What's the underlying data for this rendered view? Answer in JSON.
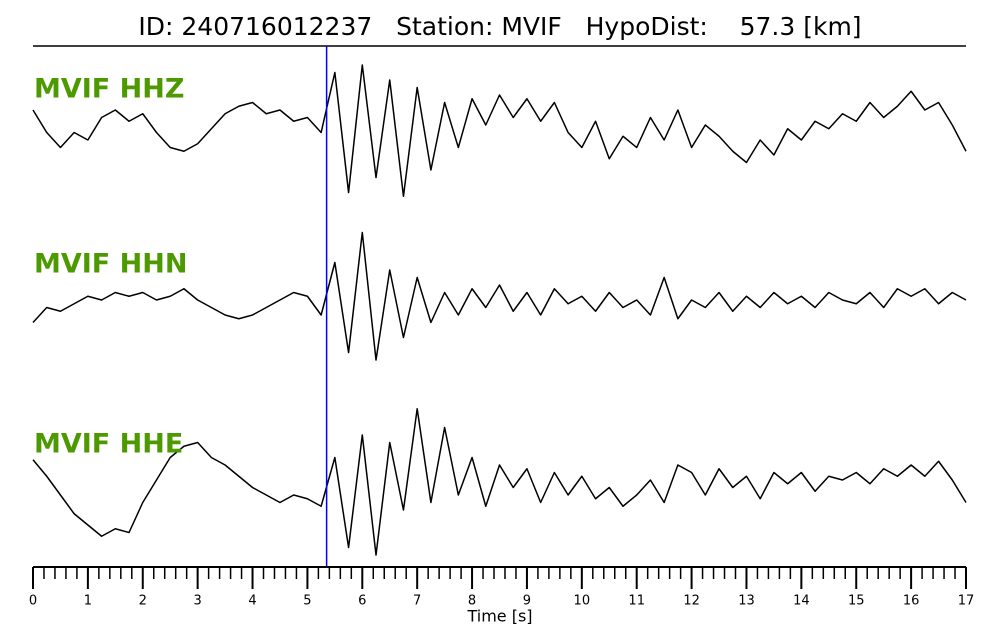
{
  "chart_data": {
    "type": "line",
    "title": "ID: 240716012237   Station: MVIF   HypoDist:    57.3 [km]",
    "xlabel": "Time [s]",
    "xlim": [
      0,
      17
    ],
    "xticks": [
      0,
      1,
      2,
      3,
      4,
      5,
      6,
      7,
      8,
      9,
      10,
      11,
      12,
      13,
      14,
      15,
      16,
      17
    ],
    "minor_tick_step": 0.2,
    "ylim": [
      -1,
      1
    ],
    "label_color": "#4d9a00",
    "vlines": [
      {
        "x": 5.35,
        "color": "#0000ee"
      }
    ],
    "x": [
      0,
      0.25,
      0.5,
      0.75,
      1,
      1.25,
      1.5,
      1.75,
      2,
      2.25,
      2.5,
      2.75,
      3,
      3.25,
      3.5,
      3.75,
      4,
      4.25,
      4.5,
      4.75,
      5,
      5.25,
      5.5,
      5.75,
      6,
      6.25,
      6.5,
      6.75,
      7,
      7.25,
      7.5,
      7.75,
      8,
      8.25,
      8.5,
      8.75,
      9,
      9.25,
      9.5,
      9.75,
      10,
      10.25,
      10.5,
      10.75,
      11,
      11.25,
      11.5,
      11.75,
      12,
      12.25,
      12.5,
      12.75,
      13,
      13.25,
      13.5,
      13.75,
      14,
      14.25,
      14.5,
      14.75,
      15,
      15.25,
      15.5,
      15.75,
      16,
      16.25,
      16.5,
      16.75,
      17
    ],
    "series": [
      {
        "name": "MVIF HHZ",
        "color": "#000000",
        "values": [
          0.2,
          -0.1,
          -0.3,
          -0.1,
          -0.2,
          0.1,
          0.2,
          0.05,
          0.15,
          -0.1,
          -0.3,
          -0.35,
          -0.25,
          -0.05,
          0.15,
          0.25,
          0.3,
          0.15,
          0.2,
          0.05,
          0.1,
          -0.1,
          0.7,
          -0.9,
          0.8,
          -0.7,
          0.6,
          -0.95,
          0.5,
          -0.6,
          0.3,
          -0.3,
          0.35,
          0.0,
          0.4,
          0.1,
          0.35,
          0.05,
          0.3,
          -0.1,
          -0.3,
          0.05,
          -0.45,
          -0.15,
          -0.3,
          0.1,
          -0.2,
          0.2,
          -0.3,
          0.0,
          -0.15,
          -0.35,
          -0.5,
          -0.2,
          -0.4,
          -0.05,
          -0.2,
          0.05,
          -0.05,
          0.15,
          0.05,
          0.3,
          0.1,
          0.25,
          0.45,
          0.2,
          0.3,
          0.0,
          -0.35
        ]
      },
      {
        "name": "MVIF HHN",
        "color": "#000000",
        "values": [
          -0.3,
          -0.1,
          -0.15,
          -0.05,
          0.05,
          0.0,
          0.1,
          0.05,
          0.1,
          0.0,
          0.05,
          0.15,
          0.0,
          -0.1,
          -0.2,
          -0.25,
          -0.2,
          -0.1,
          0.0,
          0.1,
          0.05,
          -0.2,
          0.5,
          -0.7,
          0.9,
          -0.8,
          0.4,
          -0.5,
          0.3,
          -0.3,
          0.1,
          -0.2,
          0.15,
          -0.1,
          0.2,
          -0.15,
          0.1,
          -0.2,
          0.15,
          -0.05,
          0.05,
          -0.15,
          0.1,
          -0.1,
          0.0,
          -0.2,
          0.3,
          -0.25,
          0.0,
          -0.1,
          0.1,
          -0.15,
          0.05,
          -0.1,
          0.1,
          -0.05,
          0.05,
          -0.1,
          0.1,
          0.0,
          -0.05,
          0.1,
          -0.1,
          0.15,
          0.05,
          0.15,
          -0.05,
          0.1,
          0.0
        ]
      },
      {
        "name": "MVIF HHE",
        "color": "#000000",
        "values": [
          0.27,
          0.05,
          -0.2,
          -0.45,
          -0.6,
          -0.75,
          -0.65,
          -0.7,
          -0.3,
          0.0,
          0.3,
          0.45,
          0.5,
          0.3,
          0.2,
          0.05,
          -0.1,
          -0.2,
          -0.3,
          -0.2,
          -0.25,
          -0.35,
          0.3,
          -0.9,
          0.6,
          -1.0,
          0.5,
          -0.4,
          0.95,
          -0.3,
          0.7,
          -0.2,
          0.3,
          -0.35,
          0.2,
          -0.1,
          0.15,
          -0.3,
          0.1,
          -0.2,
          0.05,
          -0.25,
          -0.1,
          -0.35,
          -0.2,
          0.0,
          -0.3,
          0.2,
          0.1,
          -0.2,
          0.15,
          -0.1,
          0.05,
          -0.25,
          0.1,
          -0.05,
          0.1,
          -0.15,
          0.05,
          0.0,
          0.1,
          -0.05,
          0.15,
          0.05,
          0.2,
          0.05,
          0.25,
          0.0,
          -0.3
        ]
      }
    ]
  }
}
